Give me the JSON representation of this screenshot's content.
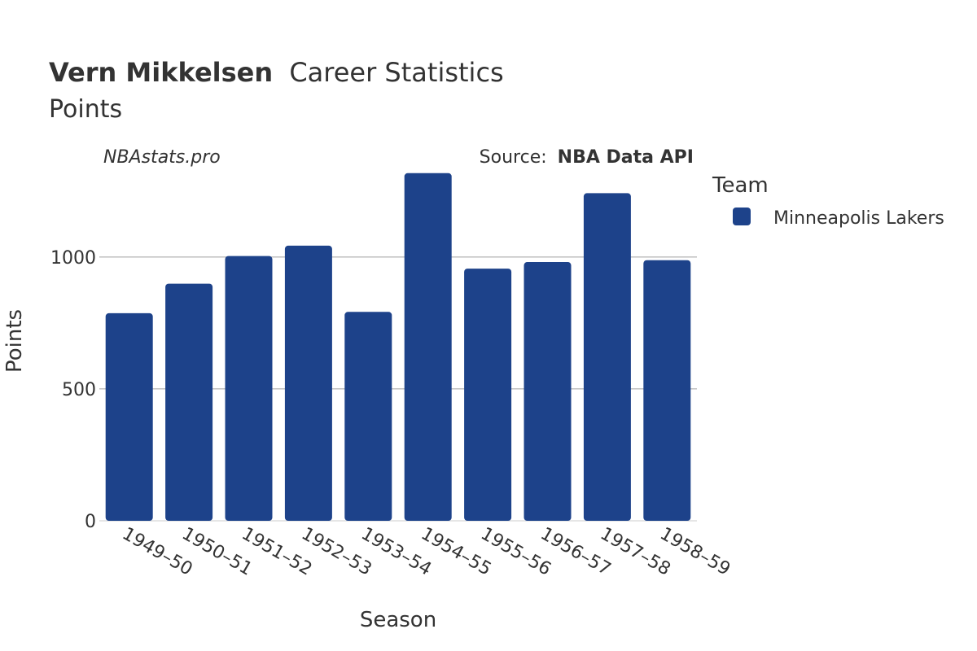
{
  "header": {
    "player_name": "Vern Mikkelsen",
    "title_rest": "Career Statistics",
    "subtitle": "Points",
    "watermark": "NBAstats.pro",
    "source_prefix": "Source:",
    "source_name": "NBA Data API"
  },
  "legend": {
    "title": "Team",
    "items": [
      {
        "label": "Minneapolis Lakers",
        "color": "#1d428a"
      }
    ]
  },
  "chart_data": {
    "type": "bar",
    "title": "Vern Mikkelsen Career Statistics",
    "subtitle": "Points",
    "xlabel": "Season",
    "ylabel": "Points",
    "categories": [
      "1949–50",
      "1950–51",
      "1951–52",
      "1952–53",
      "1953–54",
      "1954–55",
      "1955–56",
      "1956–57",
      "1957–58",
      "1958–59"
    ],
    "series": [
      {
        "name": "Minneapolis Lakers",
        "color": "#1d428a",
        "values": [
          787,
          899,
          1004,
          1043,
          792,
          1318,
          956,
          981,
          1242,
          988
        ]
      }
    ],
    "ylim": [
      0,
      1450
    ],
    "yticks": [
      0,
      500,
      1000
    ],
    "ytick_labels": [
      "0",
      "500",
      "1000"
    ],
    "grid": true,
    "legend_position": "right"
  }
}
